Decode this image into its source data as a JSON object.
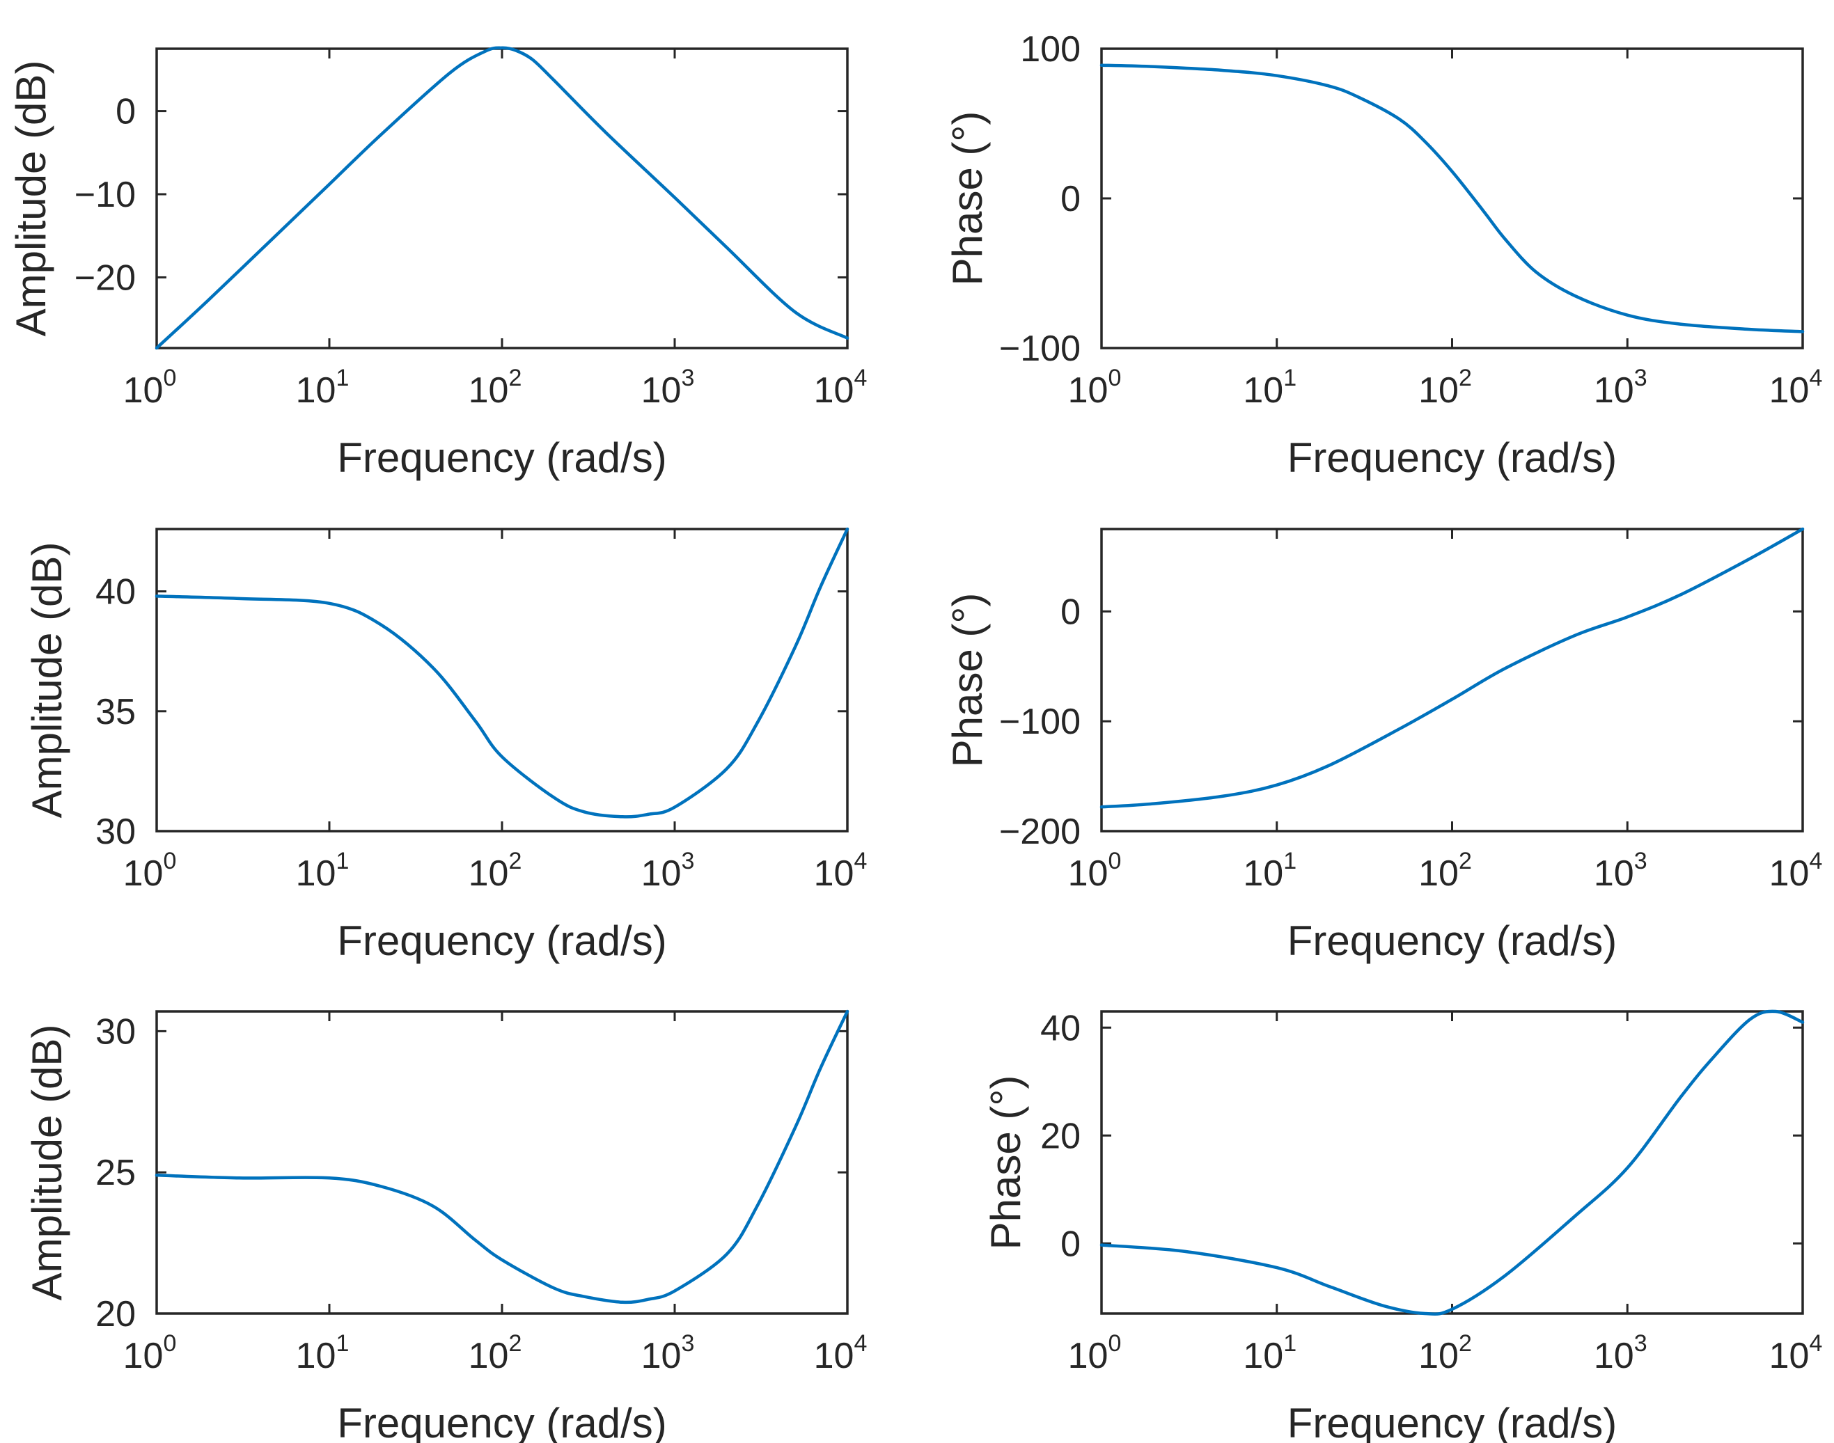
{
  "colors": {
    "series": "#0072BD",
    "axis": "#262626"
  },
  "chart_data": [
    {
      "type": "line",
      "title": "",
      "xlabel": "Frequency (rad/s)",
      "ylabel": "Amplitude (dB)",
      "xscale": "log",
      "xlim": [
        1,
        10000
      ],
      "xticks": [
        {
          "base": "10",
          "exp": "0"
        },
        {
          "base": "10",
          "exp": "1"
        },
        {
          "base": "10",
          "exp": "2"
        },
        {
          "base": "10",
          "exp": "3"
        },
        {
          "base": "10",
          "exp": "4"
        }
      ],
      "ylim": [
        -28.5,
        7.5
      ],
      "yticks": [
        {
          "value": 0,
          "label": "0"
        },
        {
          "value": -10,
          "label": "−10"
        },
        {
          "value": -20,
          "label": "−20"
        }
      ],
      "series": [
        {
          "name": "Amplitude",
          "x": [
            1,
            2,
            5,
            10,
            20,
            50,
            80,
            100,
            120,
            150,
            200,
            400,
            1000,
            2000,
            5000,
            10000
          ],
          "y": [
            -28.5,
            -22.7,
            -14.8,
            -8.8,
            -2.8,
            4.6,
            7.2,
            7.6,
            7.3,
            6.2,
            3.7,
            -2.6,
            -10.4,
            -16.4,
            -24.2,
            -27.3
          ]
        }
      ]
    },
    {
      "type": "line",
      "title": "",
      "xlabel": "Frequency (rad/s)",
      "ylabel": "Phase (°)",
      "xscale": "log",
      "xlim": [
        1,
        10000
      ],
      "xticks": [
        {
          "base": "10",
          "exp": "0"
        },
        {
          "base": "10",
          "exp": "1"
        },
        {
          "base": "10",
          "exp": "2"
        },
        {
          "base": "10",
          "exp": "3"
        },
        {
          "base": "10",
          "exp": "4"
        }
      ],
      "ylim": [
        -100,
        100
      ],
      "yticks": [
        {
          "value": 100,
          "label": "100"
        },
        {
          "value": 0,
          "label": "0"
        },
        {
          "value": -100,
          "label": "−100"
        }
      ],
      "series": [
        {
          "name": "Phase",
          "x": [
            1,
            2,
            5,
            10,
            20,
            30,
            50,
            70,
            100,
            150,
            200,
            300,
            500,
            1000,
            2000,
            5000,
            10000
          ],
          "y": [
            89,
            88,
            85.5,
            82,
            75,
            67,
            53,
            38,
            18,
            -8,
            -27,
            -49,
            -65,
            -78,
            -84,
            -87.5,
            -89
          ]
        }
      ]
    },
    {
      "type": "line",
      "title": "",
      "xlabel": "Frequency (rad/s)",
      "ylabel": "Amplitude (dB)",
      "xscale": "log",
      "xlim": [
        1,
        10000
      ],
      "xticks": [
        {
          "base": "10",
          "exp": "0"
        },
        {
          "base": "10",
          "exp": "1"
        },
        {
          "base": "10",
          "exp": "2"
        },
        {
          "base": "10",
          "exp": "3"
        },
        {
          "base": "10",
          "exp": "4"
        }
      ],
      "ylim": [
        30,
        42.6
      ],
      "yticks": [
        {
          "value": 40,
          "label": "40"
        },
        {
          "value": 35,
          "label": "35"
        },
        {
          "value": 30,
          "label": "30"
        }
      ],
      "series": [
        {
          "name": "Amplitude",
          "x": [
            1,
            3,
            10,
            20,
            40,
            70,
            100,
            200,
            300,
            500,
            700,
            1000,
            2000,
            3000,
            5000,
            7000,
            10000
          ],
          "y": [
            39.8,
            39.7,
            39.5,
            38.6,
            36.8,
            34.6,
            33.1,
            31.4,
            30.8,
            30.6,
            30.7,
            31,
            32.6,
            34.5,
            37.7,
            40.2,
            42.6
          ]
        }
      ]
    },
    {
      "type": "line",
      "title": "",
      "xlabel": "Frequency (rad/s)",
      "ylabel": "Phase (°)",
      "xscale": "log",
      "xlim": [
        1,
        10000
      ],
      "xticks": [
        {
          "base": "10",
          "exp": "0"
        },
        {
          "base": "10",
          "exp": "1"
        },
        {
          "base": "10",
          "exp": "2"
        },
        {
          "base": "10",
          "exp": "3"
        },
        {
          "base": "10",
          "exp": "4"
        }
      ],
      "ylim": [
        -200,
        75
      ],
      "yticks": [
        {
          "value": 0,
          "label": "0"
        },
        {
          "value": -100,
          "label": "−100"
        },
        {
          "value": -200,
          "label": "−200"
        }
      ],
      "series": [
        {
          "name": "Phase",
          "x": [
            1,
            2,
            5,
            10,
            20,
            50,
            100,
            200,
            500,
            1000,
            2000,
            5000,
            10000
          ],
          "y": [
            -178,
            -175,
            -168,
            -158,
            -140,
            -107,
            -80,
            -52,
            -22,
            -5,
            15,
            48,
            75
          ]
        }
      ]
    },
    {
      "type": "line",
      "title": "",
      "xlabel": "Frequency (rad/s)",
      "ylabel": "Amplitude (dB)",
      "xscale": "log",
      "xlim": [
        1,
        10000
      ],
      "xticks": [
        {
          "base": "10",
          "exp": "0"
        },
        {
          "base": "10",
          "exp": "1"
        },
        {
          "base": "10",
          "exp": "2"
        },
        {
          "base": "10",
          "exp": "3"
        },
        {
          "base": "10",
          "exp": "4"
        }
      ],
      "ylim": [
        20,
        30.7
      ],
      "yticks": [
        {
          "value": 30,
          "label": "30"
        },
        {
          "value": 25,
          "label": "25"
        },
        {
          "value": 20,
          "label": "20"
        }
      ],
      "series": [
        {
          "name": "Amplitude",
          "x": [
            1,
            3,
            10,
            20,
            40,
            70,
            100,
            200,
            300,
            500,
            700,
            1000,
            2000,
            3000,
            5000,
            7000,
            10000
          ],
          "y": [
            24.9,
            24.8,
            24.8,
            24.5,
            23.8,
            22.6,
            21.9,
            20.9,
            20.6,
            20.4,
            20.5,
            20.8,
            22.1,
            23.8,
            26.6,
            28.7,
            30.7
          ]
        }
      ]
    },
    {
      "type": "line",
      "title": "",
      "xlabel": "Frequency (rad/s)",
      "ylabel": "Phase (°)",
      "xscale": "log",
      "xlim": [
        1,
        10000
      ],
      "xticks": [
        {
          "base": "10",
          "exp": "0"
        },
        {
          "base": "10",
          "exp": "1"
        },
        {
          "base": "10",
          "exp": "2"
        },
        {
          "base": "10",
          "exp": "3"
        },
        {
          "base": "10",
          "exp": "4"
        }
      ],
      "ylim": [
        -13,
        43
      ],
      "yticks": [
        {
          "value": 40,
          "label": "40"
        },
        {
          "value": 20,
          "label": "20"
        },
        {
          "value": 0,
          "label": "0"
        }
      ],
      "series": [
        {
          "name": "Phase",
          "x": [
            1,
            3,
            10,
            20,
            40,
            70,
            100,
            200,
            500,
            1000,
            2000,
            3000,
            5000,
            7000,
            10000
          ],
          "y": [
            -0.3,
            -1.5,
            -4.5,
            -8,
            -11.5,
            -13,
            -12.2,
            -6,
            5,
            14,
            27,
            34,
            41.5,
            43,
            41
          ]
        }
      ]
    }
  ]
}
